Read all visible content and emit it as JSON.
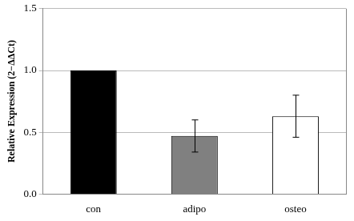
{
  "chart_data": {
    "type": "bar",
    "y_label": "Relative Expression (2−ΔΔCt)",
    "categories": [
      "con",
      "adipo",
      "osteo"
    ],
    "values": [
      1.0,
      0.47,
      0.63
    ],
    "errors": [
      null,
      0.13,
      0.17
    ],
    "colors": [
      "#000000",
      "#808080",
      "#ffffff"
    ],
    "ylim": [
      0,
      1.5
    ],
    "yticks": [
      {
        "value": 0,
        "label": "0.0"
      },
      {
        "value": 0.5,
        "label": "0.5"
      },
      {
        "value": 1,
        "label": "1.0"
      },
      {
        "value": 1.5,
        "label": "1.5"
      }
    ],
    "grid": true
  }
}
